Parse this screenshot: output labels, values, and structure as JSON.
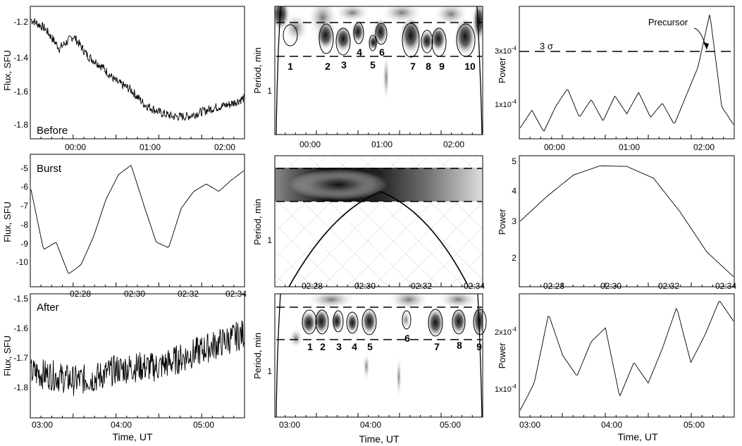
{
  "columns": {
    "xlabel": "Time, UT",
    "flux_ylabel": "Flux, SFU",
    "period_ylabel": "Period, min",
    "power_ylabel": "Power"
  },
  "rows": {
    "before": {
      "label": "Before",
      "x_ticks": [
        "00:00",
        "01:00",
        "02:00"
      ],
      "flux_ticks": [
        "-1.2",
        "-1.4",
        "-1.6",
        "-1.8"
      ],
      "period_ticks": [
        "1"
      ],
      "power_ticks": [
        "1x10",
        "3x10"
      ],
      "power_tick_exp": "-4",
      "sigma_label": "3 σ",
      "annotation": "Precursor",
      "oscillation_numbers": [
        "1",
        "2",
        "3",
        "4",
        "5",
        "6",
        "7",
        "8",
        "9",
        "10"
      ]
    },
    "burst": {
      "label": "Burst",
      "x_ticks": [
        "02:28",
        "02:30",
        "02:32",
        "02:34"
      ],
      "flux_ticks": [
        "-5",
        "-6",
        "-7",
        "-8",
        "-9",
        "-10"
      ],
      "period_ticks": [
        "1"
      ],
      "power_ticks": [
        "5",
        "4",
        "3",
        "2"
      ]
    },
    "after": {
      "label": "After",
      "x_ticks": [
        "03:00",
        "04:00",
        "05:00"
      ],
      "flux_ticks": [
        "-1.5",
        "-1.6",
        "-1.7",
        "-1.8"
      ],
      "period_ticks": [
        "1"
      ],
      "power_ticks": [
        "2x10",
        "1x10"
      ],
      "power_tick_exp": "-4",
      "oscillation_numbers": [
        "1",
        "2",
        "3",
        "4",
        "5",
        "6",
        "7",
        "8",
        "9"
      ]
    }
  },
  "chart_data": [
    {
      "type": "line",
      "panel": "before-flux",
      "ylabel": "Flux, SFU",
      "xlabel": "",
      "x_ticks": [
        "00:00",
        "01:00",
        "02:00"
      ],
      "ylim": [
        -1.88,
        -1.1
      ],
      "x": [
        "23:34",
        "23:45",
        "00:00",
        "00:08",
        "00:15",
        "00:25",
        "00:35",
        "00:45",
        "01:00",
        "01:15",
        "01:30",
        "01:45",
        "02:00",
        "02:10",
        "02:15",
        "02:22"
      ],
      "values": [
        -1.14,
        -1.2,
        -1.33,
        -1.25,
        -1.38,
        -1.45,
        -1.55,
        -1.6,
        -1.7,
        -1.75,
        -1.78,
        -1.78,
        -1.75,
        -1.72,
        -1.7,
        -1.66
      ]
    },
    {
      "type": "heatmap",
      "panel": "before-wavelet",
      "ylabel": "Period, min",
      "x_ticks": [
        "00:00",
        "01:00",
        "02:00"
      ],
      "y_ticks": [
        "1"
      ],
      "labels": [
        "1",
        "2",
        "3",
        "4",
        "5",
        "6",
        "7",
        "8",
        "9",
        "10"
      ]
    },
    {
      "type": "line",
      "panel": "before-power",
      "ylabel": "Power",
      "x_ticks": [
        "00:00",
        "01:00",
        "02:00"
      ],
      "y_ticks": [
        "1x10^-4",
        "3x10^-4"
      ],
      "threshold": "3 σ",
      "annotation": "Precursor",
      "x": [
        "23:34",
        "23:45",
        "23:55",
        "00:10",
        "00:20",
        "00:30",
        "00:40",
        "00:50",
        "01:00",
        "01:10",
        "01:20",
        "01:30",
        "01:40",
        "01:50",
        "02:00",
        "02:05",
        "02:10",
        "02:15",
        "02:22"
      ],
      "values": [
        0.3,
        0.8,
        0.2,
        0.9,
        1.4,
        0.6,
        1.1,
        0.5,
        1.2,
        0.7,
        1.3,
        0.6,
        1.0,
        0.4,
        1.2,
        2.0,
        3.5,
        0.9,
        0.4
      ]
    },
    {
      "type": "line",
      "panel": "burst-flux",
      "ylabel": "Flux, SFU",
      "x_ticks": [
        "02:28",
        "02:30",
        "02:32",
        "02:34"
      ],
      "ylim": [
        -10.8,
        -4.5
      ],
      "x": [
        "02:27",
        "02:27.3",
        "02:27.6",
        "02:28",
        "02:28.2",
        "02:28.5",
        "02:29",
        "02:29.5",
        "02:30",
        "02:30.5",
        "02:30.8",
        "02:31",
        "02:31.3",
        "02:32",
        "02:32.5",
        "02:33",
        "02:33.5",
        "02:34"
      ],
      "values": [
        -6,
        -9.2,
        -8.8,
        -10.5,
        -10.0,
        -8.5,
        -6.5,
        -5.2,
        -4.7,
        -6.8,
        -8.8,
        -9.1,
        -7.0,
        -6.1,
        -5.7,
        -6.1,
        -5.5,
        -5.0
      ]
    },
    {
      "type": "heatmap",
      "panel": "burst-wavelet",
      "ylabel": "Period, min",
      "x_ticks": [
        "02:28",
        "02:30",
        "02:32",
        "02:34"
      ],
      "y_ticks": [
        "1"
      ]
    },
    {
      "type": "line",
      "panel": "burst-power",
      "ylabel": "Power",
      "x_ticks": [
        "02:28",
        "02:30",
        "02:32",
        "02:34"
      ],
      "ylim": [
        1.3,
        5.1
      ],
      "x": [
        "02:27",
        "02:28",
        "02:29",
        "02:29.7",
        "02:30",
        "02:31",
        "02:32",
        "02:33",
        "02:34"
      ],
      "values": [
        3.2,
        4.0,
        4.7,
        5.0,
        4.98,
        4.6,
        3.5,
        2.2,
        1.4
      ]
    },
    {
      "type": "line",
      "panel": "after-flux",
      "ylabel": "Flux, SFU",
      "x_ticks": [
        "03:00",
        "04:00",
        "05:00"
      ],
      "ylim": [
        -1.88,
        -1.48
      ],
      "x": [
        "02:56",
        "03:15",
        "03:30",
        "03:45",
        "04:00",
        "04:15",
        "04:30",
        "04:45",
        "05:00",
        "05:15",
        "05:26"
      ],
      "values": [
        -1.74,
        -1.75,
        -1.77,
        -1.76,
        -1.73,
        -1.72,
        -1.72,
        -1.69,
        -1.66,
        -1.63,
        -1.6
      ]
    },
    {
      "type": "heatmap",
      "panel": "after-wavelet",
      "ylabel": "Period, min",
      "x_ticks": [
        "03:00",
        "04:00",
        "05:00"
      ],
      "y_ticks": [
        "1"
      ],
      "labels": [
        "1",
        "2",
        "3",
        "4",
        "5",
        "6",
        "7",
        "8",
        "9"
      ]
    },
    {
      "type": "line",
      "panel": "after-power",
      "ylabel": "Power",
      "x_ticks": [
        "03:00",
        "04:00",
        "05:00"
      ],
      "y_ticks": [
        "1x10^-4",
        "2x10^-4"
      ],
      "x": [
        "02:56",
        "03:10",
        "03:20",
        "03:30",
        "03:40",
        "03:50",
        "04:00",
        "04:10",
        "04:20",
        "04:30",
        "04:40",
        "04:50",
        "05:00",
        "05:10",
        "05:20",
        "05:26"
      ],
      "values": [
        0.4,
        0.8,
        1.8,
        1.2,
        0.9,
        1.4,
        1.6,
        0.6,
        1.1,
        0.8,
        1.3,
        1.9,
        1.1,
        1.5,
        2.0,
        1.7
      ]
    }
  ]
}
